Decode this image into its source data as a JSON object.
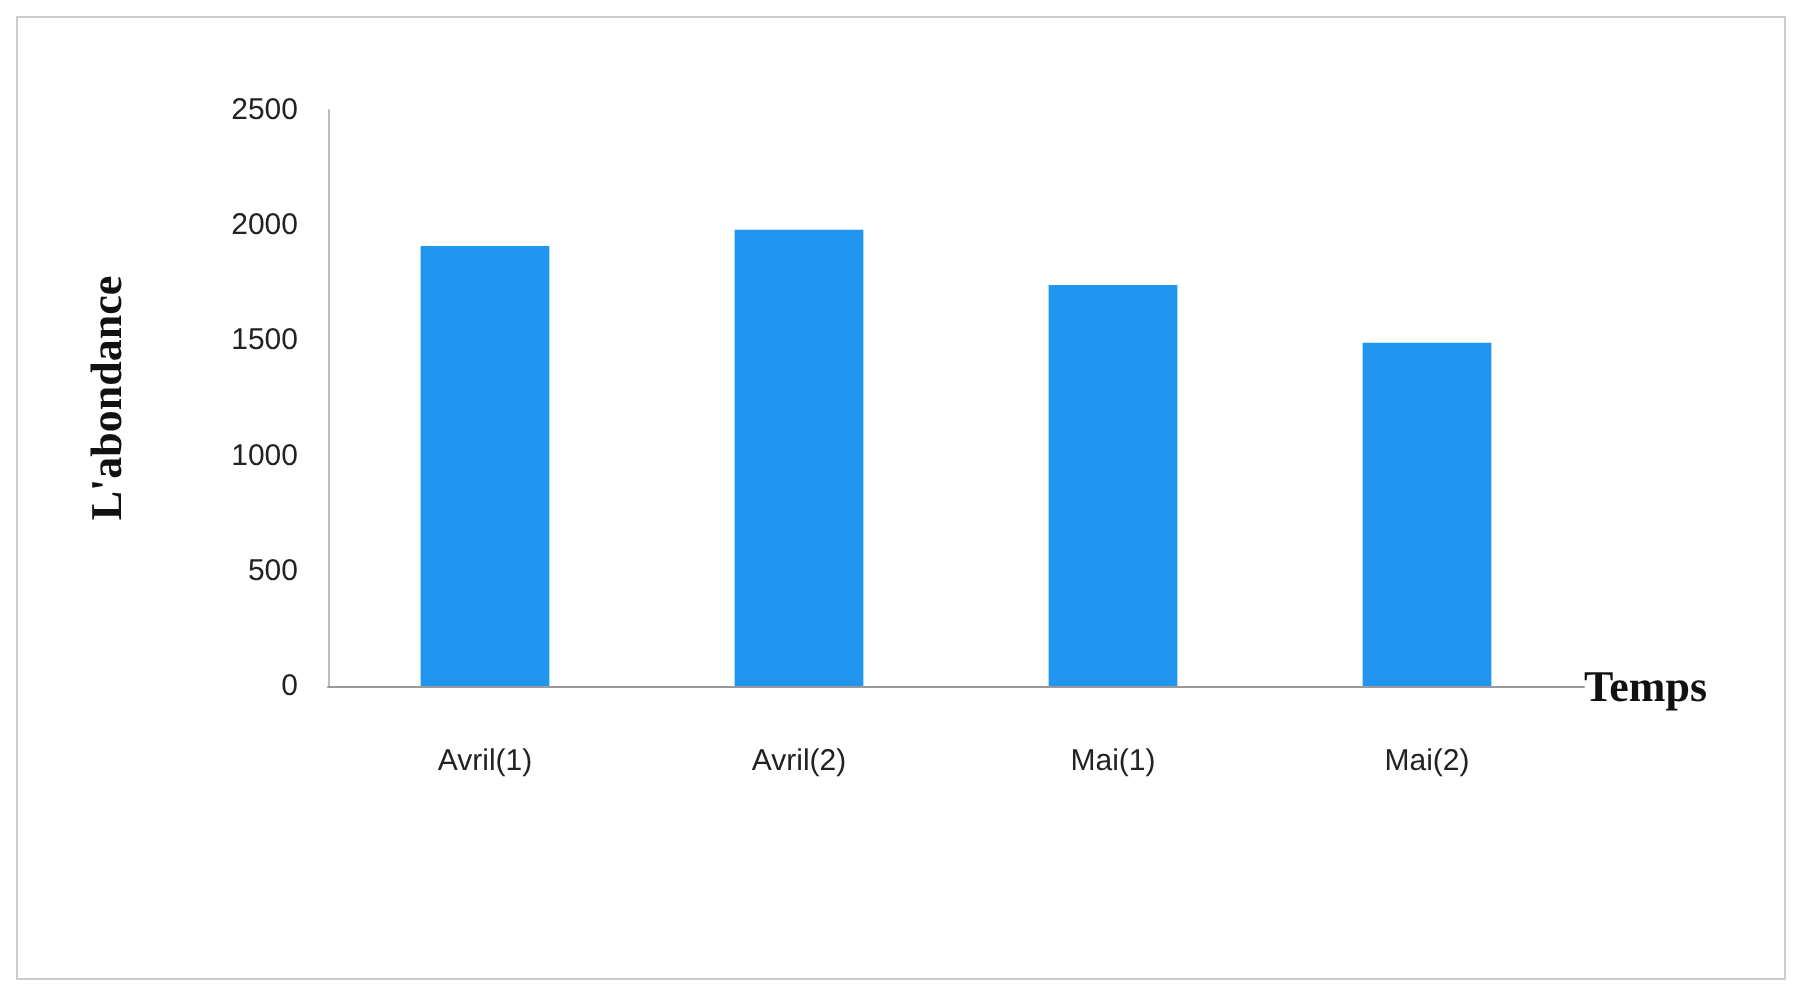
{
  "chart_data": {
    "type": "bar",
    "xlabel": "Temps",
    "ylabel": "L'abondance",
    "categories": [
      "Avril(1)",
      "Avril(2)",
      "Mai(1)",
      "Mai(2)"
    ],
    "values": [
      1910,
      1980,
      1740,
      1490
    ],
    "color": "#2196f0",
    "ylim": [
      0,
      2500
    ],
    "yticks": [
      0,
      500,
      1000,
      1500,
      2000,
      2500
    ],
    "grid": false
  }
}
